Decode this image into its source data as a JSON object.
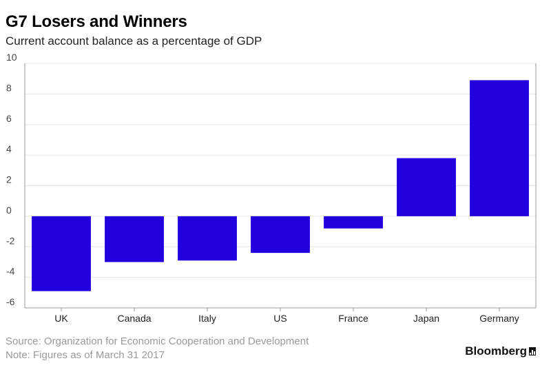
{
  "header": {
    "title": "G7 Losers and Winners",
    "subtitle": "Current account balance as a percentage of GDP"
  },
  "footer": {
    "source": "Source: Organization for Economic Cooperation and Development",
    "note": "Note: Figures as of March 31 2017",
    "brand": "Bloomberg",
    "brand_icon": "bloomberg-bars-icon"
  },
  "colors": {
    "bar": "#2200dd",
    "grid": "#e6e6e6",
    "axis": "#999999"
  },
  "chart_data": {
    "type": "bar",
    "title": "G7 Losers and Winners",
    "subtitle": "Current account balance as a percentage of GDP",
    "categories": [
      "UK",
      "Canada",
      "Italy",
      "US",
      "France",
      "Japan",
      "Germany"
    ],
    "values": [
      -4.9,
      -3.0,
      -2.9,
      -2.4,
      -0.8,
      3.8,
      8.9
    ],
    "ylim": [
      -6,
      10
    ],
    "yticks": [
      10,
      8,
      6,
      4,
      2,
      0,
      -2,
      -4,
      -6
    ],
    "grid": true,
    "legend": "none"
  }
}
